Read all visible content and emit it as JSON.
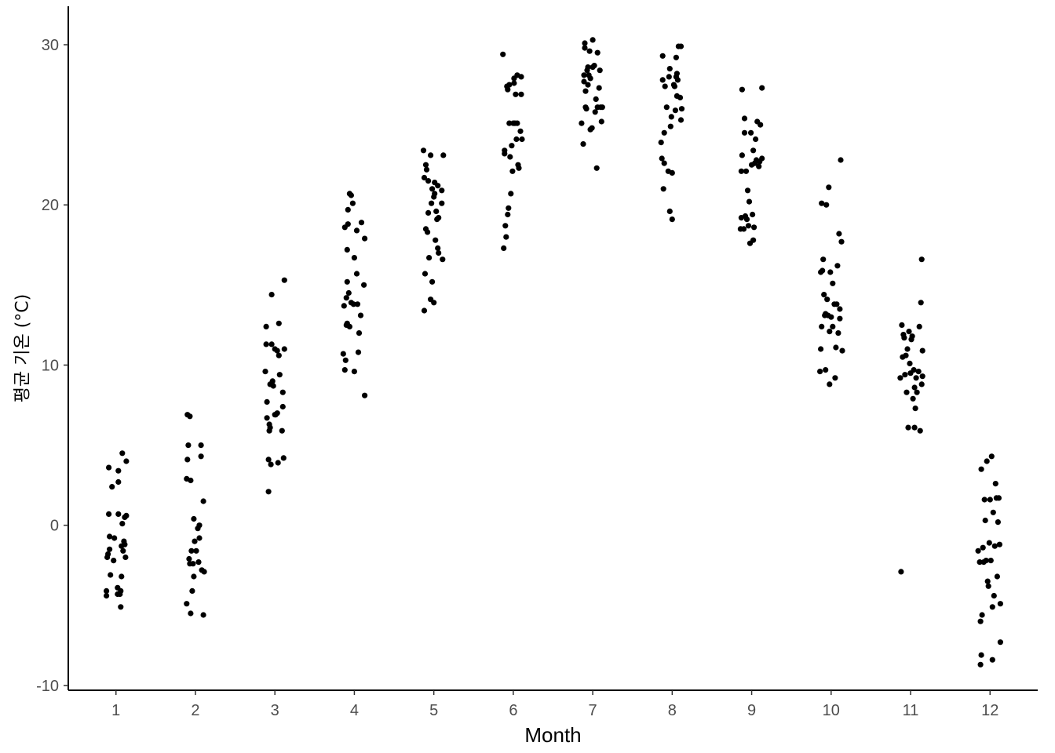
{
  "chart_data": {
    "type": "scatter",
    "title": "",
    "xlabel": "Month",
    "ylabel": "평균 기온 (°C)",
    "x_ticks": [
      "1",
      "2",
      "3",
      "4",
      "5",
      "6",
      "7",
      "8",
      "9",
      "10",
      "11",
      "12"
    ],
    "y_ticks": [
      -10,
      0,
      10,
      20,
      30
    ],
    "y_tick_labels": [
      "-10",
      "0",
      "10",
      "20",
      "30"
    ],
    "xlim": [
      0.4,
      12.6
    ],
    "ylim": [
      -10.3,
      32.4
    ],
    "grid": false,
    "legend": "none",
    "point_color": "#000000",
    "points": [
      [
        0.88,
        -4.4
      ],
      [
        0.88,
        -4.1
      ],
      [
        0.89,
        -2.0
      ],
      [
        0.9,
        -1.8
      ],
      [
        0.91,
        0.7
      ],
      [
        0.91,
        3.6
      ],
      [
        0.92,
        -0.7
      ],
      [
        0.92,
        -1.5
      ],
      [
        0.93,
        -3.1
      ],
      [
        0.95,
        2.4
      ],
      [
        0.97,
        -2.2
      ],
      [
        0.98,
        -0.8
      ],
      [
        1.02,
        -4.3
      ],
      [
        1.02,
        -3.9
      ],
      [
        1.03,
        0.7
      ],
      [
        1.03,
        2.7
      ],
      [
        1.03,
        3.4
      ],
      [
        1.05,
        -4.3
      ],
      [
        1.06,
        -4.1
      ],
      [
        1.06,
        -5.1
      ],
      [
        1.07,
        -1.3
      ],
      [
        1.07,
        -3.2
      ],
      [
        1.08,
        0.1
      ],
      [
        1.08,
        4.5
      ],
      [
        1.09,
        -1.6
      ],
      [
        1.1,
        -1.0
      ],
      [
        1.11,
        0.5
      ],
      [
        1.12,
        -2.0
      ],
      [
        1.13,
        4.0
      ],
      [
        1.13,
        0.6
      ],
      [
        1.11,
        -1.2
      ],
      [
        1.89,
        -4.9
      ],
      [
        1.89,
        2.9
      ],
      [
        1.9,
        4.1
      ],
      [
        1.9,
        6.9
      ],
      [
        1.91,
        5.0
      ],
      [
        1.92,
        -2.1
      ],
      [
        1.93,
        6.8
      ],
      [
        1.93,
        -2.4
      ],
      [
        1.94,
        -5.5
      ],
      [
        1.94,
        2.8
      ],
      [
        1.95,
        -1.6
      ],
      [
        1.96,
        -4.1
      ],
      [
        1.97,
        -2.4
      ],
      [
        1.98,
        0.4
      ],
      [
        1.98,
        -3.2
      ],
      [
        1.99,
        -1.0
      ],
      [
        2.01,
        -1.6
      ],
      [
        2.03,
        -0.2
      ],
      [
        2.04,
        -2.3
      ],
      [
        2.05,
        0.0
      ],
      [
        2.05,
        -0.8
      ],
      [
        2.07,
        5.0
      ],
      [
        2.07,
        4.3
      ],
      [
        2.08,
        -2.8
      ],
      [
        2.1,
        1.5
      ],
      [
        2.1,
        -5.6
      ],
      [
        2.11,
        -2.9
      ],
      [
        2.88,
        9.6
      ],
      [
        2.89,
        12.4
      ],
      [
        2.89,
        11.3
      ],
      [
        2.9,
        6.7
      ],
      [
        2.9,
        7.7
      ],
      [
        2.92,
        2.1
      ],
      [
        2.92,
        4.1
      ],
      [
        2.93,
        6.3
      ],
      [
        2.93,
        5.9
      ],
      [
        2.94,
        8.8
      ],
      [
        2.94,
        6.1
      ],
      [
        2.95,
        3.8
      ],
      [
        2.96,
        14.4
      ],
      [
        2.96,
        11.3
      ],
      [
        2.97,
        9.0
      ],
      [
        2.98,
        8.7
      ],
      [
        3.0,
        6.9
      ],
      [
        3.01,
        6.9
      ],
      [
        3.03,
        7.0
      ],
      [
        3.03,
        10.9
      ],
      [
        3.04,
        3.9
      ],
      [
        3.05,
        12.6
      ],
      [
        3.05,
        10.6
      ],
      [
        3.06,
        9.4
      ],
      [
        3.09,
        5.9
      ],
      [
        3.1,
        8.3
      ],
      [
        3.1,
        7.4
      ],
      [
        3.11,
        4.2
      ],
      [
        3.12,
        15.3
      ],
      [
        3.12,
        11.0
      ],
      [
        3.0,
        11.0
      ],
      [
        3.86,
        10.7
      ],
      [
        3.87,
        13.7
      ],
      [
        3.88,
        18.6
      ],
      [
        3.88,
        9.7
      ],
      [
        3.89,
        10.3
      ],
      [
        3.9,
        12.5
      ],
      [
        3.9,
        14.2
      ],
      [
        3.91,
        12.6
      ],
      [
        3.91,
        17.2
      ],
      [
        3.91,
        15.2
      ],
      [
        3.92,
        18.8
      ],
      [
        3.92,
        19.7
      ],
      [
        3.93,
        14.5
      ],
      [
        3.94,
        12.4
      ],
      [
        3.94,
        20.7
      ],
      [
        3.96,
        13.9
      ],
      [
        3.96,
        20.6
      ],
      [
        3.98,
        20.1
      ],
      [
        3.99,
        13.8
      ],
      [
        4.0,
        16.7
      ],
      [
        4.0,
        9.6
      ],
      [
        4.03,
        15.7
      ],
      [
        4.03,
        18.4
      ],
      [
        4.04,
        13.8
      ],
      [
        4.05,
        10.8
      ],
      [
        4.06,
        12.0
      ],
      [
        4.08,
        13.1
      ],
      [
        4.09,
        18.9
      ],
      [
        4.12,
        15.0
      ],
      [
        4.13,
        17.9
      ],
      [
        4.13,
        8.1
      ],
      [
        4.87,
        23.4
      ],
      [
        4.88,
        21.7
      ],
      [
        4.88,
        13.4
      ],
      [
        4.89,
        15.7
      ],
      [
        4.9,
        22.5
      ],
      [
        4.9,
        18.5
      ],
      [
        4.91,
        22.2
      ],
      [
        4.92,
        18.3
      ],
      [
        4.93,
        19.5
      ],
      [
        4.93,
        21.5
      ],
      [
        4.94,
        16.7
      ],
      [
        4.96,
        23.1
      ],
      [
        4.96,
        14.1
      ],
      [
        4.97,
        20.1
      ],
      [
        4.98,
        21.0
      ],
      [
        4.98,
        15.2
      ],
      [
        5.0,
        13.9
      ],
      [
        5.01,
        20.7
      ],
      [
        5.01,
        21.4
      ],
      [
        5.02,
        17.8
      ],
      [
        5.03,
        19.6
      ],
      [
        5.04,
        19.1
      ],
      [
        5.05,
        17.3
      ],
      [
        5.05,
        21.2
      ],
      [
        5.06,
        17.0
      ],
      [
        5.06,
        19.2
      ],
      [
        5.1,
        20.1
      ],
      [
        5.1,
        20.9
      ],
      [
        5.11,
        16.6
      ],
      [
        5.12,
        23.1
      ],
      [
        5.0,
        20.5
      ],
      [
        5.87,
        29.4
      ],
      [
        5.88,
        17.3
      ],
      [
        5.89,
        23.4
      ],
      [
        5.89,
        23.2
      ],
      [
        5.9,
        18.7
      ],
      [
        5.91,
        18.0
      ],
      [
        5.92,
        27.4
      ],
      [
        5.93,
        19.4
      ],
      [
        5.93,
        27.2
      ],
      [
        5.94,
        19.8
      ],
      [
        5.95,
        27.5
      ],
      [
        5.95,
        25.1
      ],
      [
        5.96,
        23.0
      ],
      [
        5.97,
        20.7
      ],
      [
        5.98,
        23.7
      ],
      [
        5.99,
        22.1
      ],
      [
        6.0,
        25.1
      ],
      [
        6.01,
        27.9
      ],
      [
        6.01,
        27.6
      ],
      [
        6.02,
        25.1
      ],
      [
        6.03,
        26.9
      ],
      [
        6.04,
        24.1
      ],
      [
        6.05,
        28.1
      ],
      [
        6.05,
        25.1
      ],
      [
        6.06,
        22.5
      ],
      [
        6.07,
        22.3
      ],
      [
        6.09,
        24.6
      ],
      [
        6.1,
        26.9
      ],
      [
        6.1,
        28.0
      ],
      [
        6.11,
        24.1
      ],
      [
        6.86,
        25.1
      ],
      [
        6.88,
        23.8
      ],
      [
        6.89,
        27.7
      ],
      [
        6.89,
        28.1
      ],
      [
        6.9,
        30.1
      ],
      [
        6.9,
        29.8
      ],
      [
        6.91,
        26.1
      ],
      [
        6.91,
        27.1
      ],
      [
        6.92,
        26.0
      ],
      [
        6.93,
        28.4
      ],
      [
        6.94,
        27.5
      ],
      [
        6.94,
        28.6
      ],
      [
        6.95,
        28.1
      ],
      [
        6.96,
        29.6
      ],
      [
        6.97,
        24.7
      ],
      [
        6.97,
        27.9
      ],
      [
        6.99,
        24.8
      ],
      [
        7.0,
        28.6
      ],
      [
        7.0,
        30.3
      ],
      [
        7.02,
        28.7
      ],
      [
        7.03,
        25.8
      ],
      [
        7.04,
        26.6
      ],
      [
        7.05,
        22.3
      ],
      [
        7.06,
        26.1
      ],
      [
        7.06,
        29.5
      ],
      [
        7.08,
        27.3
      ],
      [
        7.09,
        28.4
      ],
      [
        7.1,
        26.1
      ],
      [
        7.11,
        25.2
      ],
      [
        7.12,
        26.1
      ],
      [
        7.86,
        23.9
      ],
      [
        7.87,
        22.9
      ],
      [
        7.88,
        27.8
      ],
      [
        7.88,
        29.3
      ],
      [
        7.89,
        21.0
      ],
      [
        7.9,
        22.6
      ],
      [
        7.9,
        24.5
      ],
      [
        7.91,
        27.4
      ],
      [
        7.93,
        26.1
      ],
      [
        7.95,
        22.1
      ],
      [
        7.96,
        28.0
      ],
      [
        7.97,
        28.5
      ],
      [
        7.97,
        19.6
      ],
      [
        7.98,
        24.9
      ],
      [
        7.99,
        25.5
      ],
      [
        8.0,
        19.1
      ],
      [
        8.02,
        27.5
      ],
      [
        8.03,
        27.4
      ],
      [
        8.04,
        25.9
      ],
      [
        8.05,
        29.2
      ],
      [
        8.05,
        28.0
      ],
      [
        8.06,
        26.8
      ],
      [
        8.06,
        28.2
      ],
      [
        8.07,
        27.8
      ],
      [
        8.08,
        29.9
      ],
      [
        8.1,
        26.7
      ],
      [
        8.11,
        25.3
      ],
      [
        8.11,
        29.9
      ],
      [
        8.12,
        26.0
      ],
      [
        8.0,
        22.0
      ],
      [
        8.86,
        18.5
      ],
      [
        8.87,
        19.2
      ],
      [
        8.87,
        22.1
      ],
      [
        8.88,
        23.1
      ],
      [
        8.88,
        27.2
      ],
      [
        8.9,
        18.5
      ],
      [
        8.91,
        24.5
      ],
      [
        8.91,
        25.4
      ],
      [
        8.92,
        19.3
      ],
      [
        8.93,
        22.1
      ],
      [
        8.94,
        19.1
      ],
      [
        8.95,
        20.9
      ],
      [
        8.96,
        18.7
      ],
      [
        8.97,
        20.2
      ],
      [
        8.98,
        17.6
      ],
      [
        8.99,
        24.5
      ],
      [
        9.0,
        22.5
      ],
      [
        9.01,
        19.4
      ],
      [
        9.02,
        17.8
      ],
      [
        9.02,
        23.4
      ],
      [
        9.03,
        18.6
      ],
      [
        9.04,
        22.6
      ],
      [
        9.05,
        24.1
      ],
      [
        9.06,
        22.8
      ],
      [
        9.07,
        25.2
      ],
      [
        9.09,
        22.4
      ],
      [
        9.1,
        22.7
      ],
      [
        9.11,
        25.0
      ],
      [
        9.13,
        27.3
      ],
      [
        9.13,
        22.9
      ],
      [
        9.86,
        9.6
      ],
      [
        9.87,
        15.8
      ],
      [
        9.87,
        11.0
      ],
      [
        9.88,
        12.4
      ],
      [
        9.88,
        20.1
      ],
      [
        9.89,
        15.9
      ],
      [
        9.9,
        16.6
      ],
      [
        9.91,
        14.4
      ],
      [
        9.92,
        13.1
      ],
      [
        9.93,
        13.2
      ],
      [
        9.93,
        9.7
      ],
      [
        9.94,
        20.0
      ],
      [
        9.95,
        14.1
      ],
      [
        9.96,
        13.1
      ],
      [
        9.97,
        21.1
      ],
      [
        9.98,
        12.1
      ],
      [
        9.98,
        8.8
      ],
      [
        9.99,
        15.8
      ],
      [
        10.0,
        13.0
      ],
      [
        10.02,
        12.4
      ],
      [
        10.02,
        15.1
      ],
      [
        10.04,
        13.8
      ],
      [
        10.05,
        9.2
      ],
      [
        10.06,
        11.1
      ],
      [
        10.07,
        13.8
      ],
      [
        10.08,
        16.2
      ],
      [
        10.09,
        12.0
      ],
      [
        10.1,
        18.2
      ],
      [
        10.11,
        13.5
      ],
      [
        10.11,
        12.9
      ],
      [
        10.12,
        22.8
      ],
      [
        10.13,
        17.7
      ],
      [
        10.14,
        10.9
      ],
      [
        10.87,
        9.2
      ],
      [
        10.88,
        -2.9
      ],
      [
        10.89,
        12.5
      ],
      [
        10.9,
        10.5
      ],
      [
        10.91,
        11.9
      ],
      [
        10.92,
        11.7
      ],
      [
        10.93,
        9.4
      ],
      [
        10.94,
        10.6
      ],
      [
        10.95,
        8.3
      ],
      [
        10.96,
        11.0
      ],
      [
        10.97,
        6.1
      ],
      [
        10.98,
        12.1
      ],
      [
        10.99,
        10.1
      ],
      [
        11.0,
        9.5
      ],
      [
        11.01,
        11.6
      ],
      [
        11.02,
        11.8
      ],
      [
        11.03,
        7.9
      ],
      [
        11.04,
        9.7
      ],
      [
        11.05,
        8.6
      ],
      [
        11.05,
        6.1
      ],
      [
        11.06,
        7.3
      ],
      [
        11.07,
        9.2
      ],
      [
        11.08,
        8.3
      ],
      [
        11.1,
        9.6
      ],
      [
        11.11,
        12.4
      ],
      [
        11.12,
        5.9
      ],
      [
        11.13,
        13.9
      ],
      [
        11.14,
        16.6
      ],
      [
        11.14,
        8.8
      ],
      [
        11.15,
        9.3
      ],
      [
        11.15,
        10.9
      ],
      [
        11.85,
        -1.6
      ],
      [
        11.87,
        -2.3
      ],
      [
        11.88,
        -8.7
      ],
      [
        11.88,
        -6.0
      ],
      [
        11.89,
        3.5
      ],
      [
        11.89,
        -8.1
      ],
      [
        11.9,
        -5.6
      ],
      [
        11.91,
        -1.4
      ],
      [
        11.92,
        -2.3
      ],
      [
        11.93,
        1.6
      ],
      [
        11.94,
        0.3
      ],
      [
        11.95,
        -2.2
      ],
      [
        11.96,
        4.0
      ],
      [
        11.97,
        -3.5
      ],
      [
        11.98,
        -3.8
      ],
      [
        11.99,
        -1.1
      ],
      [
        12.0,
        1.6
      ],
      [
        12.01,
        -2.2
      ],
      [
        12.02,
        4.3
      ],
      [
        12.03,
        -8.4
      ],
      [
        12.03,
        -5.1
      ],
      [
        12.04,
        0.8
      ],
      [
        12.05,
        -4.4
      ],
      [
        12.06,
        -1.3
      ],
      [
        12.07,
        2.6
      ],
      [
        12.08,
        1.7
      ],
      [
        12.09,
        -3.2
      ],
      [
        12.1,
        0.2
      ],
      [
        12.11,
        1.7
      ],
      [
        12.12,
        -1.2
      ],
      [
        12.13,
        -4.9
      ],
      [
        12.13,
        -7.3
      ]
    ]
  }
}
